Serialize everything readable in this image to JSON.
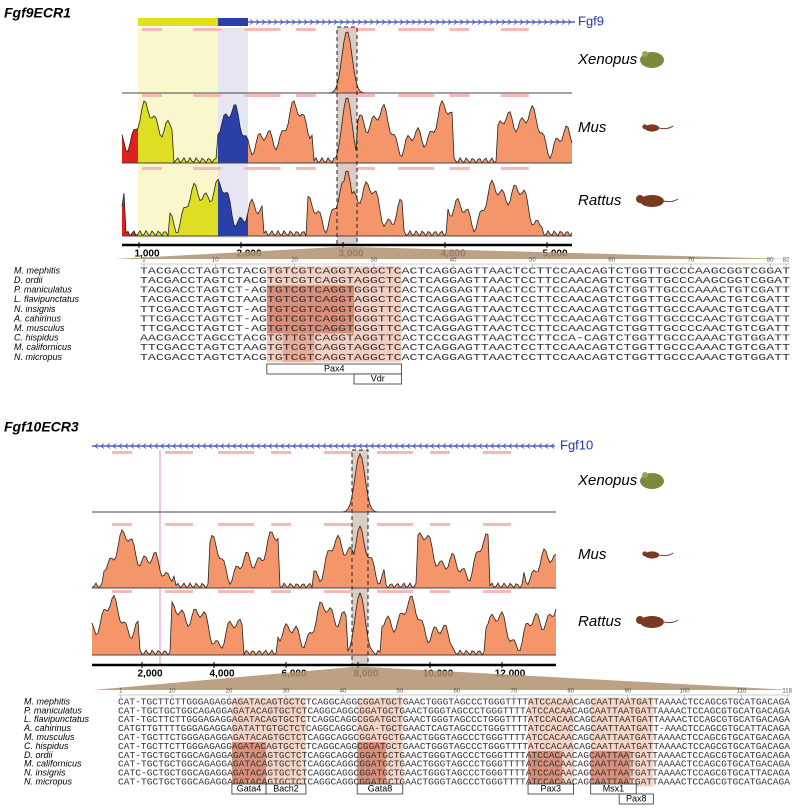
{
  "panels": [
    {
      "title": "Fgf9ECR1",
      "gene": "Fgf9",
      "tracks": [
        "Xenopus",
        "Mus",
        "Rattus"
      ],
      "axis_ticks": [
        "1,000",
        "2,000",
        "3,000",
        "4,000",
        "5,000"
      ],
      "positions": [
        1,
        10,
        20,
        30,
        40,
        50,
        60,
        70,
        80,
        82
      ],
      "species": [
        "M. mephitis",
        "D. ordii",
        "P. maniculatus",
        "L. flavipunctatus",
        "N. insignis",
        "A. cahirinus",
        "M. musculus",
        "C. hispidus",
        "M. californicus",
        "N. micropus"
      ],
      "sequences": [
        "TACGACCTAGTCTACGTGTCGTCAGGTAGGCTCACTCAGGAGTTAACTCCTTCCAACAGTCTGGTTGCCCAAGCGGTCGGAT",
        "TACGACCTAGTCTACGTGTCGTCAGGTAGGCTCACTCAGGAGTTAACTCCTTCCAACAGTCTGGTTGCCCAAGCGGTCGGAT",
        "TACGACCTAGTCT-AGTGTCGTCAGGTGGGTTCACTCAGGAGTTAACTCCTTCCAACAGTCTGGTTGCCCAAACTGTCGATT",
        "TACGACCTAGTCTAAGTGTCGTCAGGTAGGCTCACTCAGGAGTTAACTCCTTCCAACAGTCTGGTTGCCCAAACTGTCGATT",
        "TTCGACCTAGTCT-AGTGTCGTCAGGTGGGTTCACTCAGGAGTTAACTCCTTCCAACAGTCTGGTTGCCCAAACTGTCGATT",
        "TTCGACCTAGTCT-AGTGTCGTCAGGTGGGTTCACTCAGGAGTTAACTCCTTCCAACAGTCTGGTTGCCCCAACTGTCGATT",
        "TTCGACCTAGTCT-AGTGTCGTCAGGTGGGTTCACTCAGGAGTTAACTCCTTCCAACAGTCTGGTTGCCCCAACTGTCGATT",
        "AACGACCTAGCCTACGTGTTGTCAGGTAGGTTCACTCCCGAGTTAACTCCTTCCA-CAGTCTGGTTGCCCAAACTGTGGATT",
        "TTCGACCTAGTCTAAGTGTCGTCAGGTAGGCTCACTCAGGAGTTAACTCCTTCCAACAGTCTGGTTGCCCAAACTGTCGATT",
        "TACGACCTAGTCTACGTGTCGTCAGGTAGGCTCACTCAGGAGTTAACTCCTTCCAACAGTCTGGTTGCCCAAACTGTGGATT"
      ],
      "motifs": [
        "Pax4",
        "Vdr"
      ]
    },
    {
      "title": "Fgf10ECR3",
      "gene": "Fgf10",
      "tracks": [
        "Xenopus",
        "Mus",
        "Rattus"
      ],
      "axis_ticks": [
        "2,000",
        "4,000",
        "6,000",
        "8,000",
        "10,000",
        "12,000"
      ],
      "positions": [
        1,
        10,
        20,
        30,
        40,
        50,
        60,
        70,
        80,
        90,
        100,
        110,
        118
      ],
      "species": [
        "M. mephitis",
        "P. maniculatus",
        "L. flavipunctatus",
        "A. cahirinus",
        "M. musculus",
        "C. hispidus",
        "D. ordii",
        "M. californicus",
        "N. insignis",
        "N. micropus"
      ],
      "sequences": [
        "CAT-TGCTTCTTGGGAGAGGAGATACAGTGCTCTCAGGCAGGCGGATGCTGAACTGGGTAGCCCTGGGTTTTATCCACAACAGCAATTAATGATTAAAACTCCAGCGTGCATGACAGA",
        "CAT-TGCTGCTGGCAGAGGAGATACAGTGCTCTCAGGCAGGCGGATGCTGAACTGGGTAGCCCTGGGTTTTATCCACAACAGCAATTAATGATTAAAACTCCAGCGTGCATGACAGA",
        "CAT-TGCTTCTTGGGAGAGGAGATACAGTGCTCTCAGGCAGGCGGATGCTGAACTGGGTAGCCCTGGGTTTTATCCACAACAGCAATTAATGATTAAAACTCCAGCGTGCATGACAGA",
        "CATGTTGTTTTGGGAGAGGAGATATTGTGCTCTCAGGCAGGCAGA-TGCTGAACTCAGTAGCCCTGGGTTTTATCCACACCAGCAATTAATGATT-AAACTCCAGCGTGCATTACAGA",
        "CAT-TGCTTCTGGGAGAGGAGATACAGTGCTCTCAGGCAGGCGGATGCTGAACTGGGTAGCCCTGGGTTTTATCCACAACAGCAATTAATGATTAAAACTCCAGCGTGCATGACAGA",
        "CAT-TGCTTCTTGGGAGAGGAGATACAGTGCTCTCAGGCAGGCGGATGCTGAACTGGGTAGCCCTGGGTTTTATCCACAACAGCAATTAATGATTAAAACTCCAGCGTGCATGACAGA",
        "CAT-TGCTGCTGGCAGAGGAGATACAGTGCTCTCAGGCAGGCGGATGCTGAACTGGGTAGCCCTGGGTTTTATCCACAACAGCAATTAATGATTAAAACTCCAGCGTGCATGACAGA",
        "CAT-TGCTGCTGGCAGAGGAGATACAGTGCTCTCAGGCAGGCGGATGCTGAACTGGGTAGCCCTGGGTTTTATCCACAACAGCAATTAATGATTAAAACTCCAGCGTGCATGACAGA",
        "CATC-GCTGCTGGCAGAGGAGATACAGTGCTCTCAGGCAGGCGGATGCTGAACTGGGTAGCCCTGGGTTTTATCCACAACAGCAATTAATGATTAAAACTCCAGCGTGCATTACAGA",
        "CAT-TGCTGCTGGCAGAGGAGATACAGTGCTCTCAGGCAGGCGGATGCTGAACTGGGTAGCCCTGGGTTTTATCCACAACAGCAATTAATGATTAAAACTCCAGCGTGCATGACAGA"
      ],
      "motifs": [
        "Gata4",
        "Bach2",
        "Gata8",
        "Pax3",
        "Msx1",
        "Pax8"
      ]
    }
  ]
}
